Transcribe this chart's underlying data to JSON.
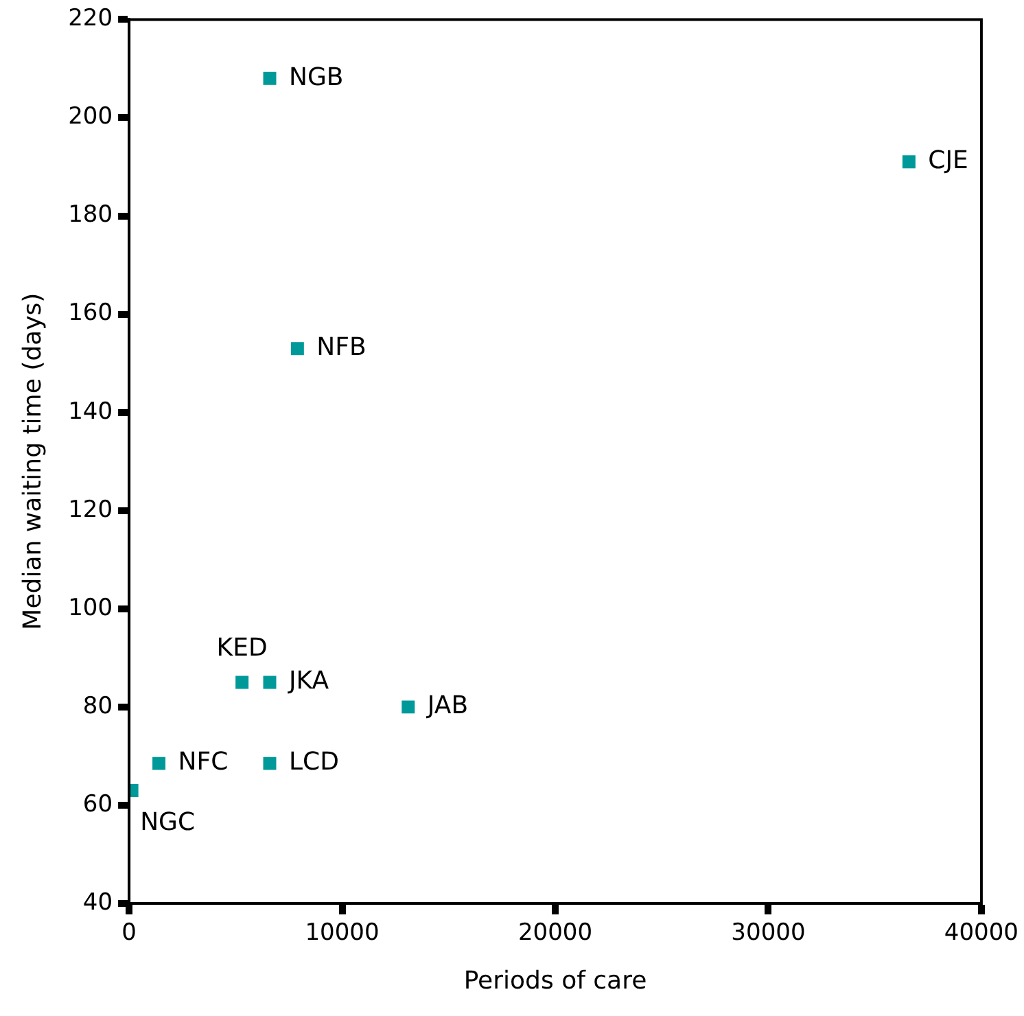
{
  "chart_data": {
    "type": "scatter",
    "xlabel": "Periods of care",
    "ylabel": "Median waiting time (days)",
    "x": [
      6600,
      36600,
      7900,
      5300,
      6600,
      13100,
      1400,
      6600,
      130
    ],
    "values": [
      208,
      191,
      153,
      85,
      85,
      80,
      68.5,
      68.5,
      63
    ],
    "color": "#009999",
    "marker": "square",
    "grid": false,
    "legend": false,
    "xlim": [
      0,
      40000
    ],
    "xticks": [
      0,
      10000,
      20000,
      30000,
      40000
    ],
    "ylim": [
      40,
      220
    ],
    "yticks": [
      40,
      60,
      80,
      100,
      120,
      140,
      160,
      180,
      200,
      220
    ],
    "annotations": [
      {
        "text": "NGB",
        "x": 6600,
        "y": 208
      },
      {
        "text": "CJE",
        "x": 36600,
        "y": 191
      },
      {
        "text": "NFB",
        "x": 7900,
        "y": 153
      },
      {
        "text": "KED",
        "x": 5300,
        "y": 85
      },
      {
        "text": "JKA",
        "x": 6600,
        "y": 85
      },
      {
        "text": "JAB",
        "x": 13100,
        "y": 80
      },
      {
        "text": "NFC",
        "x": 1400,
        "y": 68.5
      },
      {
        "text": "LCD",
        "x": 6600,
        "y": 68.5
      },
      {
        "text": "NGC",
        "x": 130,
        "y": 63
      }
    ]
  }
}
